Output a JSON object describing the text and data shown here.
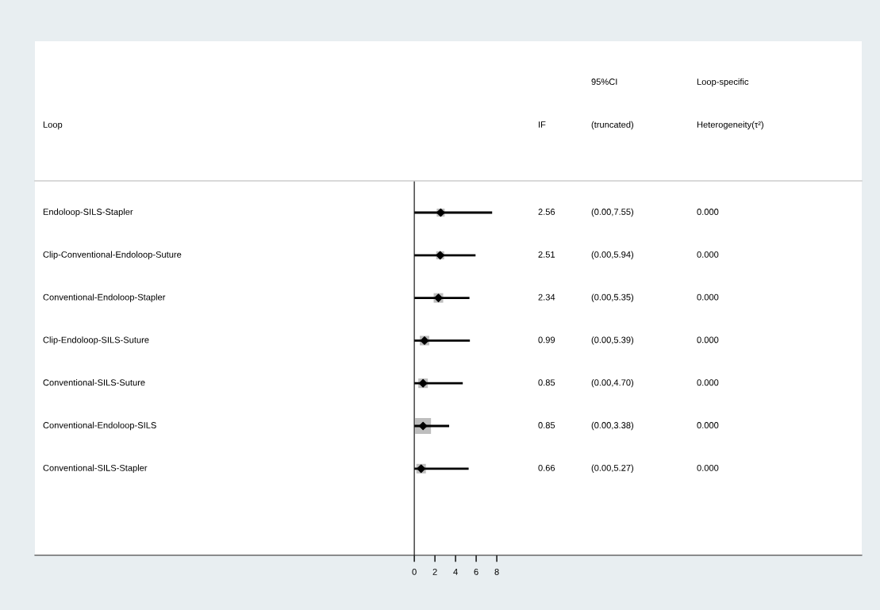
{
  "chart_data": {
    "type": "scatter",
    "orientation": "horizontal",
    "categories": [
      "Endoloop-SILS-Stapler",
      "Clip-Conventional-Endoloop-Suture",
      "Conventional-Endoloop-Stapler",
      "Clip-Endoloop-SILS-Suture",
      "Conventional-SILS-Suture",
      "Conventional-Endoloop-SILS",
      "Conventional-SILS-Stapler"
    ],
    "xlim": [
      -36.8,
      43.4
    ],
    "xticks": [
      0,
      2,
      4,
      6,
      8
    ],
    "grid": false,
    "legend": false,
    "ref_lines": [
      {
        "axis": "x",
        "value": 0,
        "color": "#333333"
      }
    ],
    "series": [
      {
        "type": "bubble",
        "color": "#bebebe",
        "marker": "square",
        "values": [
          2.56,
          2.51,
          2.34,
          0.99,
          0.85,
          0.85,
          0.66
        ],
        "sizes": [
          0.25,
          0.25,
          0.36,
          0.36,
          0.36,
          1,
          0.36
        ]
      },
      {
        "color": "#000000",
        "marker": "diamond",
        "values": [
          2.56,
          2.51,
          2.34,
          0.99,
          0.85,
          0.85,
          0.66
        ],
        "errors": [
          [
            0.0,
            7.55
          ],
          [
            0.0,
            5.94
          ],
          [
            0.0,
            5.35
          ],
          [
            0.0,
            5.39
          ],
          [
            0.0,
            4.7
          ],
          [
            0.0,
            3.38
          ],
          [
            0.0,
            5.27
          ]
        ]
      }
    ],
    "annotations": [
      "Loop",
      "IF",
      "95%CI",
      "(truncated)",
      "Loop-specific",
      "Heterogeneity(τ²)",
      "2.56",
      "2.51",
      "2.34",
      "0.99",
      "0.85",
      "0.85",
      "0.66",
      "(0.00,7.55)",
      "(0.00,5.94)",
      "(0.00,5.35)",
      "(0.00,5.39)",
      "(0.00,4.70)",
      "(0.00,3.38)",
      "(0.00,5.27)",
      "0.000",
      "0.000",
      "0.000",
      "0.000",
      "0.000",
      "0.000",
      "0.000"
    ]
  }
}
